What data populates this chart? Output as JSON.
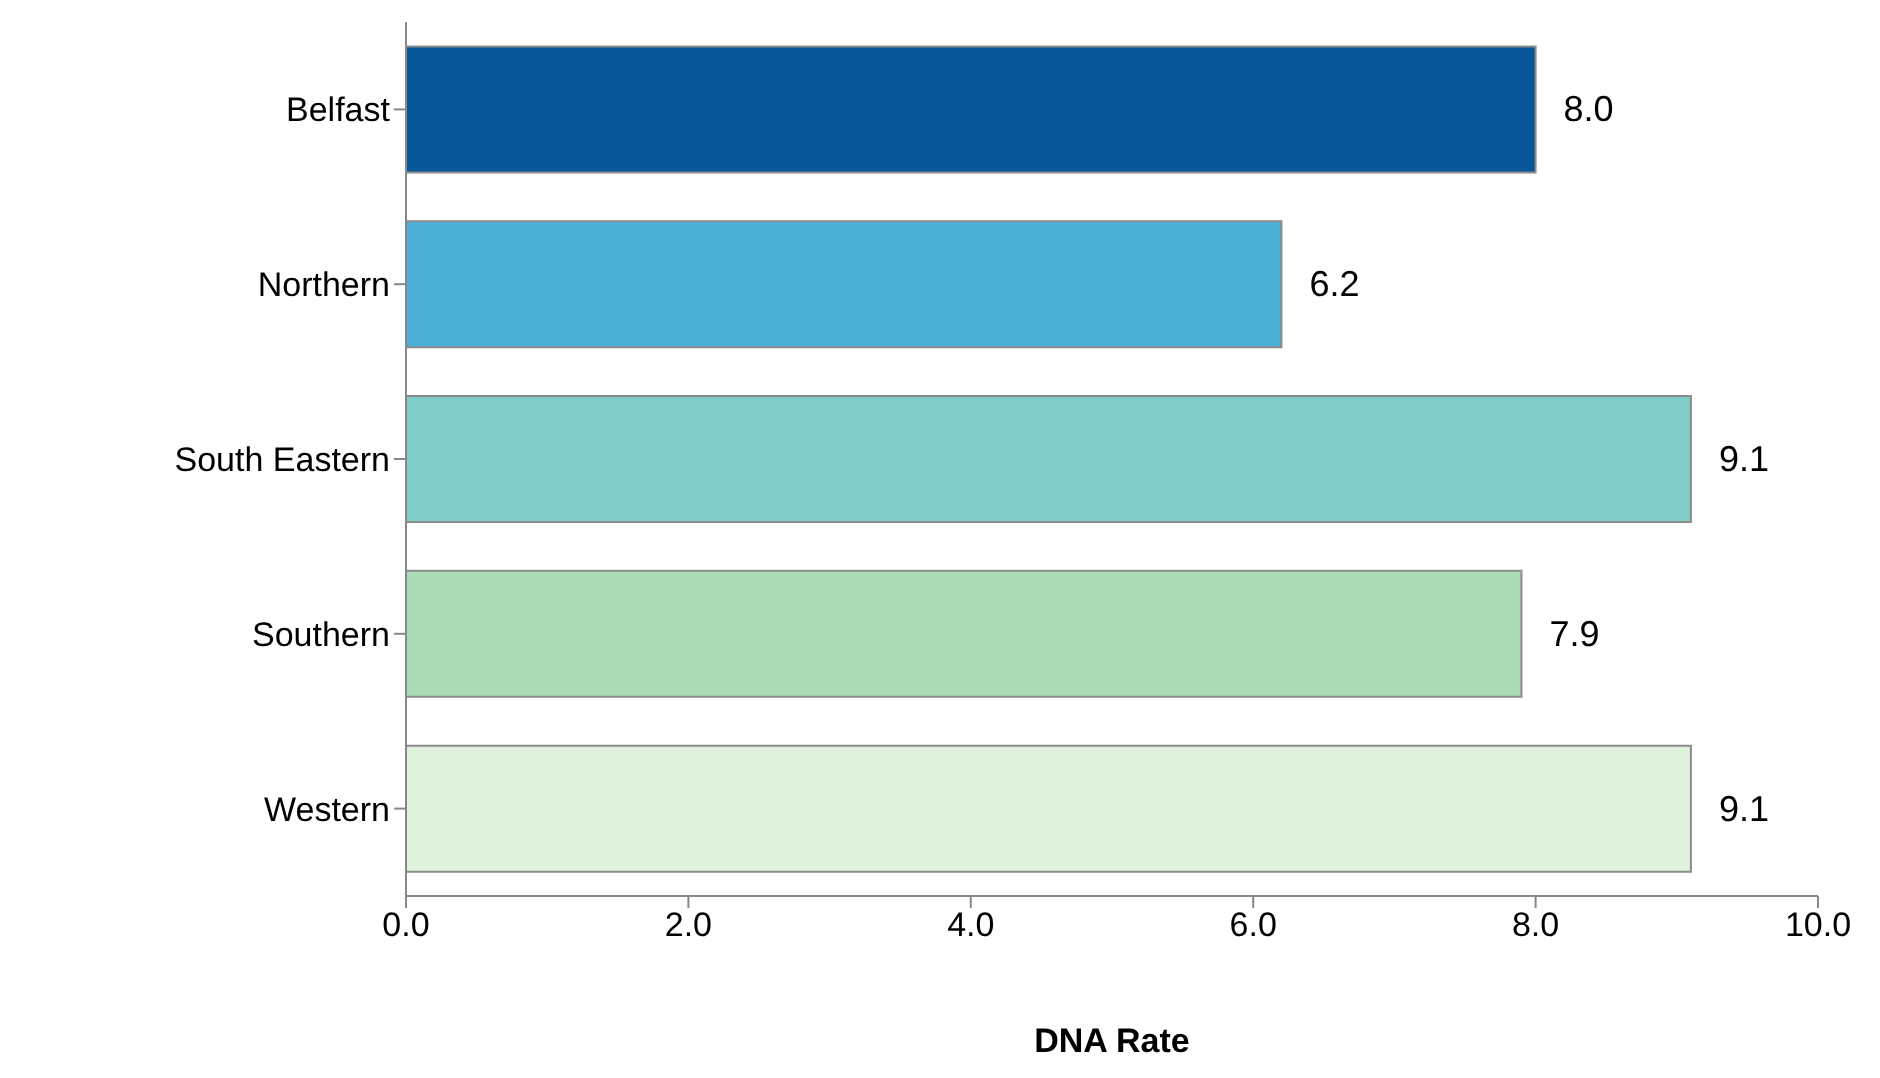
{
  "chart_data": {
    "type": "bar",
    "orientation": "horizontal",
    "xlabel": "DNA Rate",
    "categories": [
      "Belfast",
      "Northern",
      "South Eastern",
      "Southern",
      "Western"
    ],
    "values": [
      8.0,
      6.2,
      9.1,
      7.9,
      9.1
    ],
    "colors": [
      "#0a569a",
      "#4bb0d6",
      "#7ecdc6",
      "#a9dcb6",
      "#dff2dc"
    ],
    "value_labels": [
      "8.0",
      "6.2",
      "9.1",
      "7.9",
      "9.1"
    ],
    "xlim": [
      0,
      10
    ],
    "xticks": [
      {
        "value": 0,
        "label": "0.0"
      },
      {
        "value": 2,
        "label": "2.0"
      },
      {
        "value": 4,
        "label": "4.0"
      },
      {
        "value": 6,
        "label": "6.0"
      },
      {
        "value": 8,
        "label": "8.0"
      },
      {
        "value": 10,
        "label": "10.0"
      }
    ],
    "grid": false,
    "legend": false
  }
}
